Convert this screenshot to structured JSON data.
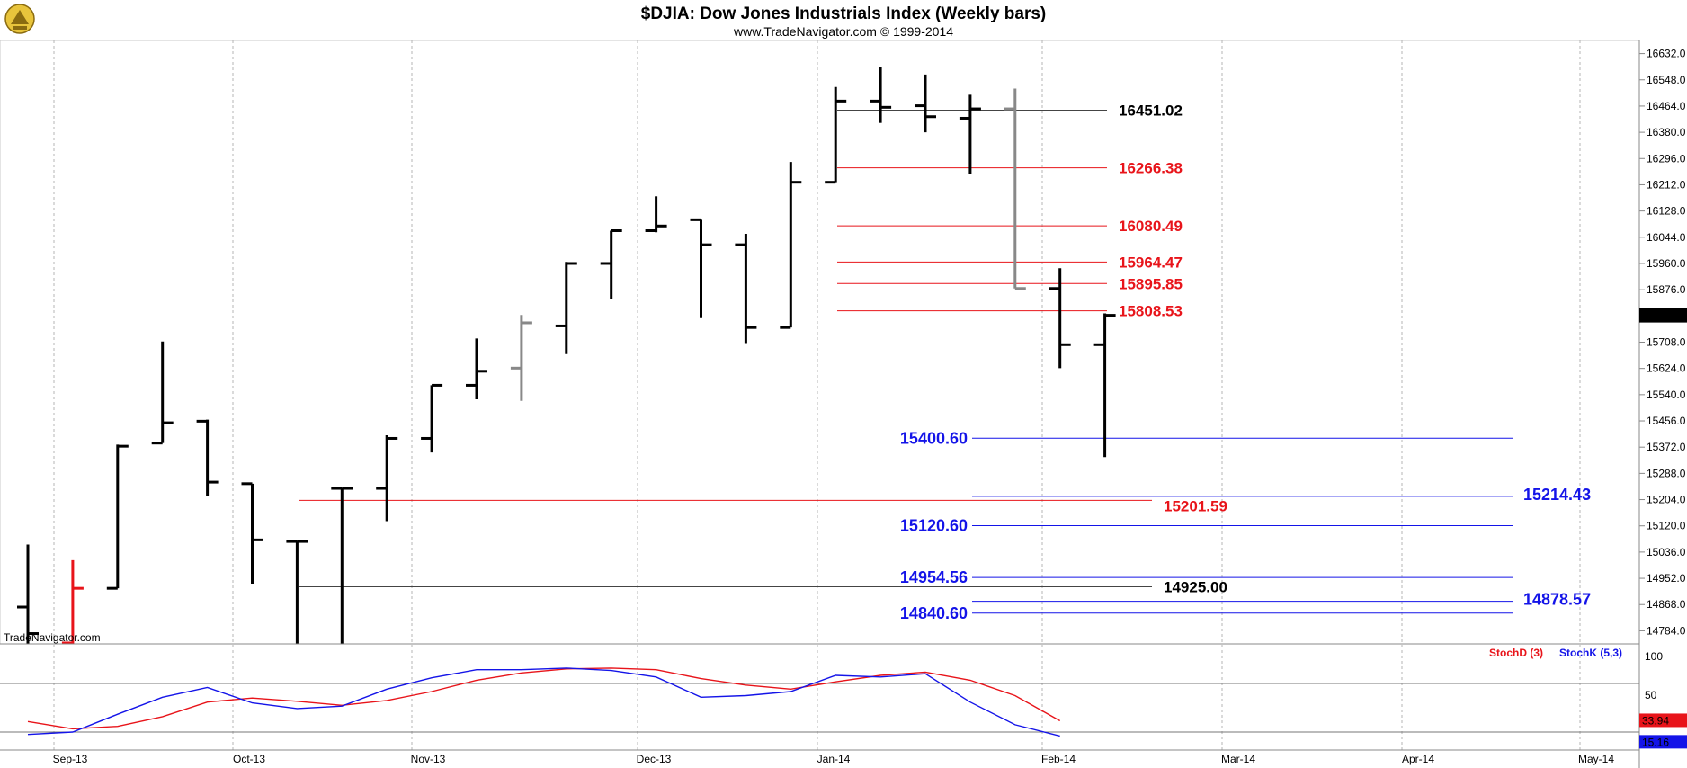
{
  "header": {
    "title": "$DJIA:  Dow Jones Industrials Index  (Weekly bars)",
    "subtitle": "www.TradeNavigator.com © 1999-2014",
    "watermark": "TradeNavigator.com"
  },
  "chart_data": [
    {
      "type": "ohlc",
      "title": "$DJIA:  Dow Jones Industrials Index  (Weekly bars)",
      "ylim": [
        14742,
        16674
      ],
      "y_ticks": [
        "16632.0",
        "16548.0",
        "16464.0",
        "16380.0",
        "16296.0",
        "16212.0",
        "16128.0",
        "16044.0",
        "15960.0",
        "15876.0",
        "15792.0",
        "15708.0",
        "15624.0",
        "15540.0",
        "15456.0",
        "15372.0",
        "15288.0",
        "15204.0",
        "15120.0",
        "15036.0",
        "14952.0",
        "14868.0",
        "14784.0"
      ],
      "x_labels": [
        "Sep-13",
        "Oct-13",
        "Nov-13",
        "Dec-13",
        "Jan-14",
        "Feb-14",
        "Mar-14",
        "Apr-14",
        "May-14"
      ],
      "last_price": "15794.08",
      "bars": [
        {
          "o": 14860,
          "h": 15060,
          "l": 14742,
          "c": 14775,
          "color": "black"
        },
        {
          "o": 14745,
          "h": 15010,
          "l": 14742,
          "c": 14920,
          "color": "red"
        },
        {
          "o": 14920,
          "h": 15380,
          "l": 14920,
          "c": 15375,
          "color": "black"
        },
        {
          "o": 15385,
          "h": 15710,
          "l": 15385,
          "c": 15450,
          "color": "black"
        },
        {
          "o": 15455,
          "h": 15460,
          "l": 15215,
          "c": 15260,
          "color": "black"
        },
        {
          "o": 15255,
          "h": 15255,
          "l": 14935,
          "c": 15075,
          "color": "black"
        },
        {
          "o": 15070,
          "h": 15070,
          "l": 14742,
          "c": 15070,
          "color": "black"
        },
        {
          "o": 15240,
          "h": 15240,
          "l": 14742,
          "c": 15240,
          "color": "black"
        },
        {
          "o": 15240,
          "h": 15410,
          "l": 15135,
          "c": 15400,
          "color": "black"
        },
        {
          "o": 15400,
          "h": 15570,
          "l": 15355,
          "c": 15570,
          "color": "black"
        },
        {
          "o": 15570,
          "h": 15720,
          "l": 15525,
          "c": 15615,
          "color": "black"
        },
        {
          "o": 15625,
          "h": 15795,
          "l": 15520,
          "c": 15770,
          "color": "gray"
        },
        {
          "o": 15760,
          "h": 15965,
          "l": 15670,
          "c": 15960,
          "color": "black"
        },
        {
          "o": 15960,
          "h": 16065,
          "l": 15845,
          "c": 16065,
          "color": "black"
        },
        {
          "o": 16065,
          "h": 16175,
          "l": 16060,
          "c": 16080,
          "color": "black"
        },
        {
          "o": 16100,
          "h": 16100,
          "l": 15785,
          "c": 16020,
          "color": "black"
        },
        {
          "o": 16020,
          "h": 16055,
          "l": 15705,
          "c": 15755,
          "color": "black"
        },
        {
          "o": 15755,
          "h": 16285,
          "l": 15755,
          "c": 16220,
          "color": "black"
        },
        {
          "o": 16220,
          "h": 16525,
          "l": 16220,
          "c": 16480,
          "color": "black"
        },
        {
          "o": 16480,
          "h": 16590,
          "l": 16410,
          "c": 16460,
          "color": "black"
        },
        {
          "o": 16465,
          "h": 16565,
          "l": 16380,
          "c": 16430,
          "color": "black"
        },
        {
          "o": 16425,
          "h": 16500,
          "l": 16245,
          "c": 16455,
          "color": "black"
        },
        {
          "o": 16455,
          "h": 16520,
          "l": 15880,
          "c": 15880,
          "color": "gray"
        },
        {
          "o": 15880,
          "h": 15945,
          "l": 15625,
          "c": 15700,
          "color": "black"
        },
        {
          "o": 15700,
          "h": 15800,
          "l": 15340,
          "c": 15794.08,
          "color": "black"
        }
      ],
      "levels": [
        {
          "label": "16451.02",
          "value": 16451.02,
          "color": "#000000",
          "line": "#444444"
        },
        {
          "label": "16266.38",
          "value": 16266.38,
          "color": "#e8141a",
          "line": "#e8141a"
        },
        {
          "label": "16080.49",
          "value": 16080.49,
          "color": "#e8141a",
          "line": "#e8141a"
        },
        {
          "label": "15964.47",
          "value": 15964.47,
          "color": "#e8141a",
          "line": "#e8141a"
        },
        {
          "label": "15895.85",
          "value": 15895.85,
          "color": "#e8141a",
          "line": "#e8141a"
        },
        {
          "label": "15808.53",
          "value": 15808.53,
          "color": "#e8141a",
          "line": "#e8141a"
        },
        {
          "label": "15400.60",
          "value": 15400.6,
          "color": "#1414e8",
          "line": "#1414e8"
        },
        {
          "label": "15201.59",
          "value": 15201.59,
          "color": "#e8141a",
          "line": "#e8141a"
        },
        {
          "label": "15214.43",
          "value": 15214.43,
          "color": "#1414e8",
          "line": "#1414e8"
        },
        {
          "label": "15120.60",
          "value": 15120.6,
          "color": "#1414e8",
          "line": "#1414e8"
        },
        {
          "label": "14954.56",
          "value": 14954.56,
          "color": "#1414e8",
          "line": "#1414e8"
        },
        {
          "label": "14925.00",
          "value": 14925.0,
          "color": "#000000",
          "line": "#444444"
        },
        {
          "label": "14878.57",
          "value": 14878.57,
          "color": "#1414e8",
          "line": "#1414e8"
        },
        {
          "label": "14840.60",
          "value": 14840.6,
          "color": "#1414e8",
          "line": "#1414e8"
        }
      ]
    },
    {
      "type": "line",
      "ylim": [
        0,
        100
      ],
      "y_ticks": [
        "100",
        "50"
      ],
      "ref_lines": [
        80,
        20
      ],
      "series": [
        {
          "name": "StochD (3)",
          "color": "#e8141a",
          "values": [
            33,
            24,
            27,
            39,
            57,
            62,
            58,
            53,
            59,
            70,
            84,
            93,
            98,
            99,
            97,
            86,
            78,
            73,
            82,
            90,
            94,
            84,
            65,
            33.94
          ]
        },
        {
          "name": "StochK (5,3)",
          "color": "#1414e8",
          "values": [
            17,
            20,
            42,
            63,
            75,
            56,
            49,
            52,
            73,
            87,
            97,
            97,
            99,
            96,
            88,
            63,
            65,
            70,
            90,
            88,
            92,
            57,
            29,
            15.16
          ]
        }
      ],
      "last_values": {
        "d": "33.94",
        "k": "15.16"
      }
    }
  ]
}
